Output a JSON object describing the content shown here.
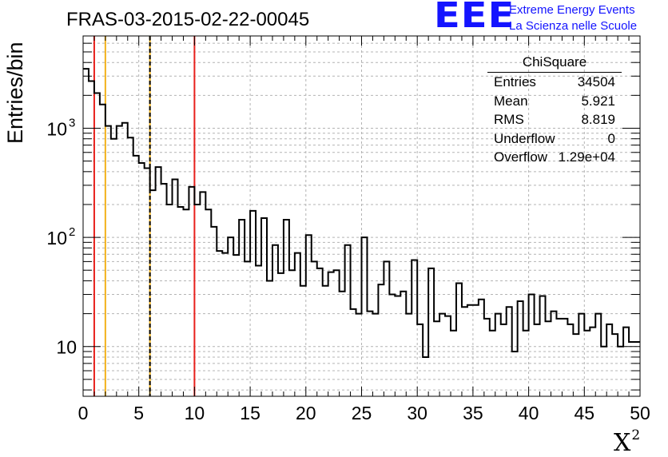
{
  "header": {
    "run_title": "FRAS-03-2015-02-22-00045",
    "logo_text": "EEE",
    "logo_line1": "Extreme Energy Events",
    "logo_line2": "La Scienza nelle Scuole"
  },
  "stats": {
    "title": "ChiSquare",
    "rows": [
      {
        "key": "Entries",
        "value": "34504"
      },
      {
        "key": "Mean",
        "value": "5.921"
      },
      {
        "key": "RMS",
        "value": "8.819"
      },
      {
        "key": "Underflow",
        "value": "0"
      },
      {
        "key": "Overflow",
        "value": "1.29e+04"
      }
    ]
  },
  "colors": {
    "accent": "#1414ff",
    "red_line": "#e8201c",
    "orange_line": "#f2b21c",
    "dashed_line": "#000000",
    "grid": "#b4b4b4"
  },
  "chart_data": {
    "type": "histogram",
    "title": "FRAS-03-2015-02-22-00045",
    "xlabel": "X²",
    "ylabel": "Entries/bin",
    "xlim": [
      0,
      50
    ],
    "ylim_log": [
      3.5,
      7000
    ],
    "yscale": "log",
    "grid": true,
    "bin_width": 0.5,
    "x_ticks": [
      0,
      5,
      10,
      15,
      20,
      25,
      30,
      35,
      40,
      45,
      50
    ],
    "y_ticks": [
      {
        "value": 10,
        "base": "10",
        "exp": ""
      },
      {
        "value": 100,
        "base": "10",
        "exp": "2"
      },
      {
        "value": 1000,
        "base": "10",
        "exp": "3"
      }
    ],
    "values": [
      3500,
      2700,
      2100,
      1650,
      1050,
      800,
      1050,
      1120,
      820,
      560,
      480,
      430,
      270,
      440,
      310,
      200,
      340,
      190,
      180,
      290,
      200,
      260,
      180,
      125,
      75,
      72,
      100,
      69,
      145,
      60,
      175,
      55,
      150,
      40,
      85,
      47,
      145,
      50,
      72,
      36,
      105,
      60,
      52,
      36,
      48,
      50,
      32,
      85,
      22,
      20,
      100,
      21,
      20,
      37,
      60,
      30,
      29,
      32,
      20,
      62,
      16,
      8,
      52,
      17,
      20,
      19,
      14,
      38,
      23,
      24,
      24,
      27,
      18,
      14,
      20,
      16,
      23,
      9,
      26,
      14,
      30,
      16,
      29,
      17,
      21,
      18,
      18,
      16,
      13,
      20,
      14,
      15,
      20,
      10,
      16,
      13,
      10,
      15,
      11,
      11
    ],
    "vertical_lines": [
      {
        "x": 1,
        "color": "#e8201c",
        "style": "solid"
      },
      {
        "x": 2,
        "color": "#f2b21c",
        "style": "solid"
      },
      {
        "x": 6,
        "color": "#f2b21c",
        "style": "solid"
      },
      {
        "x": 6,
        "color": "#000000",
        "style": "dashed"
      },
      {
        "x": 10,
        "color": "#e8201c",
        "style": "solid"
      }
    ]
  }
}
